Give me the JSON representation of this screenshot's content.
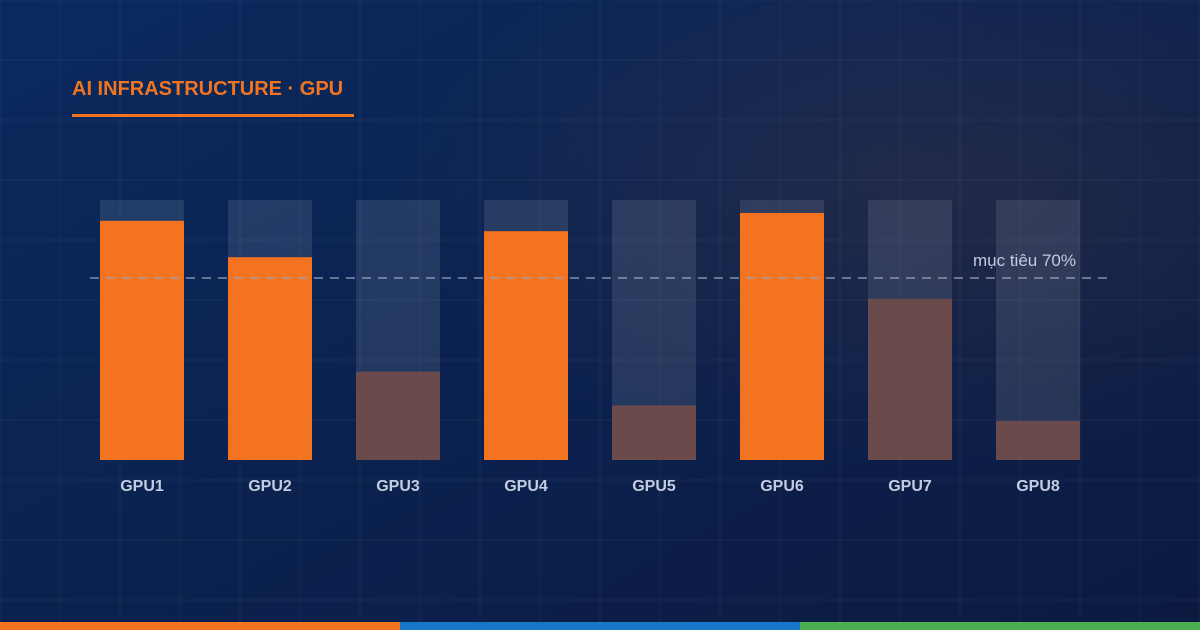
{
  "header": {
    "title": "AI INFRASTRUCTURE · GPU"
  },
  "chart_data": {
    "type": "bar",
    "categories": [
      "GPU1",
      "GPU2",
      "GPU3",
      "GPU4",
      "GPU5",
      "GPU6",
      "GPU7",
      "GPU8"
    ],
    "values": [
      92,
      78,
      34,
      88,
      21,
      95,
      62,
      15
    ],
    "ylim": [
      0,
      100
    ],
    "target": {
      "value": 70,
      "label": "mục tiêu 70%"
    },
    "grid": true,
    "legend": "none"
  },
  "colors": {
    "background_start": "#0a2a5e",
    "background_end": "#0c1a40",
    "accent": "#f47321",
    "below_target_bar": "#6a4a4a",
    "track": "#ffffff",
    "tick_label": "#c3cce0",
    "target_line": "#9aa4bd",
    "footer_bars": [
      "#f47321",
      "#1677c9",
      "#4caf50"
    ]
  }
}
